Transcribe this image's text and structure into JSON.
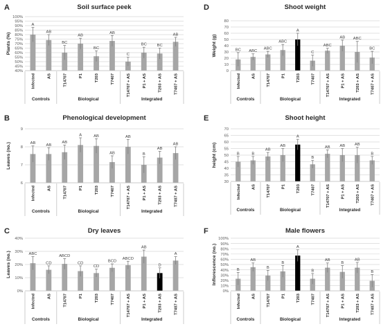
{
  "colors": {
    "bar": "#a6a6a6",
    "highlight": "#000000",
    "grid": "#d9d9d9",
    "text": "#262626"
  },
  "chart_data": [
    {
      "panel": "A",
      "title": "Soil surface peek",
      "type": "bar",
      "ylabel": "Plants (%)",
      "ylim": [
        40,
        100
      ],
      "yticks": [
        "40%",
        "45%",
        "50%",
        "55%",
        "60%",
        "65%",
        "70%",
        "75%",
        "80%",
        "85%",
        "90%",
        "95%",
        "100%"
      ],
      "grid": true,
      "categories": [
        "Infected",
        "AS",
        "T14707",
        "P1",
        "T203",
        "T7407",
        "T14707 + AS",
        "P1 + AS",
        "T203 + AS",
        "T7407 + AS"
      ],
      "values": [
        80,
        74,
        60,
        70,
        56,
        73,
        50,
        60,
        59,
        72
      ],
      "errors": [
        8,
        6,
        8,
        6,
        6,
        6,
        5,
        6,
        6,
        5
      ],
      "letters": [
        "A",
        "AB",
        "BC",
        "AB",
        "BC",
        "AB",
        "C",
        "BC",
        "BC",
        "AB"
      ],
      "highlight_index": null,
      "groups": [
        {
          "label": "Controls",
          "span": [
            0,
            1
          ]
        },
        {
          "label": "Biological",
          "span": [
            2,
            5
          ]
        },
        {
          "label": "Integrated",
          "span": [
            6,
            9
          ]
        }
      ]
    },
    {
      "panel": "B",
      "title": "Phenological development",
      "type": "bar",
      "ylabel": "Leaves (no.)",
      "ylim": [
        6,
        9
      ],
      "yticks": [
        "6",
        "7",
        "8",
        "9"
      ],
      "grid": true,
      "categories": [
        "Infected",
        "AS",
        "T14707",
        "P1",
        "T203",
        "T7407",
        "T14707 + AS",
        "P1 + AS",
        "T203 + AS",
        "T7407 + AS"
      ],
      "values": [
        7.6,
        7.6,
        7.7,
        8.1,
        8.05,
        7.15,
        8.0,
        7.0,
        7.4,
        7.65
      ],
      "errors": [
        0.45,
        0.35,
        0.4,
        0.4,
        0.4,
        0.35,
        0.4,
        0.45,
        0.35,
        0.35
      ],
      "letters": [
        "AB",
        "AB",
        "AB",
        "A",
        "AB",
        "AB",
        "AB",
        "B",
        "AB",
        "AB"
      ],
      "highlight_index": null,
      "groups": [
        {
          "label": "Controls",
          "span": [
            0,
            1
          ]
        },
        {
          "label": "Biological",
          "span": [
            2,
            5
          ]
        },
        {
          "label": "Integrated",
          "span": [
            6,
            9
          ]
        }
      ]
    },
    {
      "panel": "C",
      "title": "Dry leaves",
      "type": "bar",
      "ylabel": "Leaves (no.)",
      "ylim": [
        0,
        40
      ],
      "yticks": [
        "0%",
        "10%",
        "20%",
        "30%",
        "40%"
      ],
      "grid": true,
      "categories": [
        "Infected",
        "AS",
        "T14707",
        "P1",
        "T203",
        "T7407",
        "T14707 + AS",
        "P1 + AS",
        "T203 + AS",
        "T7407 + AS"
      ],
      "values": [
        21,
        16,
        20.5,
        15,
        13.5,
        17.5,
        19.5,
        26,
        13.5,
        23
      ],
      "errors": [
        5,
        3,
        4,
        4,
        3,
        3,
        3,
        5,
        4,
        3
      ],
      "letters": [
        "ABC",
        "CD",
        "ABCD",
        "CD",
        "CD",
        "BCD",
        "ABCD",
        "AB",
        "D",
        "A"
      ],
      "highlight_index": 8,
      "groups": [
        {
          "label": "Controls",
          "span": [
            0,
            1
          ]
        },
        {
          "label": "Biological",
          "span": [
            2,
            5
          ]
        },
        {
          "label": "Integrated",
          "span": [
            6,
            9
          ]
        }
      ]
    },
    {
      "panel": "D",
      "title": "Shoot weight",
      "type": "bar",
      "ylabel": "Weight (g)",
      "ylim": [
        0,
        80
      ],
      "yticks": [
        "0",
        "10",
        "20",
        "30",
        "40",
        "50",
        "60",
        "70",
        "80"
      ],
      "grid": true,
      "categories": [
        "Infected",
        "AS",
        "T14707",
        "P1",
        "T203",
        "T7407",
        "T14707 + AS",
        "P1 + AS",
        "T203 + AS",
        "T7407 + AS"
      ],
      "values": [
        18,
        22,
        26,
        33,
        50,
        16,
        32,
        40,
        30,
        21
      ],
      "errors": [
        11,
        5,
        5,
        9,
        10,
        9,
        4,
        9,
        17,
        10
      ],
      "letters": [
        "BC",
        "ABC",
        "ABC",
        "ABC",
        "A",
        "C",
        "ABC",
        "AB",
        "ABC",
        "BC"
      ],
      "highlight_index": 4,
      "groups": [
        {
          "label": "Controls",
          "span": [
            0,
            1
          ]
        },
        {
          "label": "Biological",
          "span": [
            2,
            5
          ]
        },
        {
          "label": "Integrated",
          "span": [
            6,
            9
          ]
        }
      ]
    },
    {
      "panel": "E",
      "title": "Shoot height",
      "type": "bar",
      "ylabel": "height (cm)",
      "ylim": [
        30,
        70
      ],
      "yticks": [
        "30",
        "35",
        "40",
        "45",
        "50",
        "55",
        "60",
        "65",
        "70"
      ],
      "grid": true,
      "categories": [
        "Infected",
        "AS",
        "T14707",
        "P1",
        "T203",
        "T7407",
        "T14707 + AS",
        "P1 + AS",
        "T203 + AS",
        "T7407 + AS"
      ],
      "values": [
        45,
        46,
        49,
        50,
        58,
        43,
        51,
        50,
        50,
        46
      ],
      "errors": [
        4,
        3,
        3,
        5,
        4,
        3,
        3,
        5,
        6,
        3
      ],
      "letters": [
        "B",
        "B",
        "AB",
        "AB",
        "A",
        "B",
        "AB",
        "AB",
        "AB",
        "B"
      ],
      "highlight_index": 4,
      "groups": [
        {
          "label": "Controls",
          "span": [
            0,
            1
          ]
        },
        {
          "label": "Biological",
          "span": [
            2,
            5
          ]
        },
        {
          "label": "Integrated",
          "span": [
            6,
            9
          ]
        }
      ]
    },
    {
      "panel": "F",
      "title": "Male flowers",
      "type": "bar",
      "ylabel": "Inflorescence (no.)",
      "ylim": [
        0,
        100
      ],
      "yticks": [
        "0%",
        "10%",
        "20%",
        "30%",
        "40%",
        "50%",
        "60%",
        "70%",
        "80%",
        "90%",
        "100%"
      ],
      "grid": true,
      "categories": [
        "Infected",
        "AS",
        "T14707",
        "P1",
        "T203",
        "T7407",
        "T14707 + AS",
        "P1 + AS",
        "T203 + AS",
        "T7407 + AS"
      ],
      "values": [
        23,
        45,
        29,
        37,
        67,
        23,
        44,
        36,
        44,
        19
      ],
      "errors": [
        12,
        8,
        10,
        11,
        11,
        10,
        9,
        12,
        10,
        12
      ],
      "letters": [
        "B",
        "AB",
        "B",
        "B",
        "A",
        "B",
        "AB",
        "B",
        "AB",
        "B"
      ],
      "highlight_index": 4,
      "groups": [
        {
          "label": "Controls",
          "span": [
            0,
            1
          ]
        },
        {
          "label": "Biological",
          "span": [
            2,
            5
          ]
        },
        {
          "label": "Integrated",
          "span": [
            6,
            9
          ]
        }
      ]
    }
  ]
}
